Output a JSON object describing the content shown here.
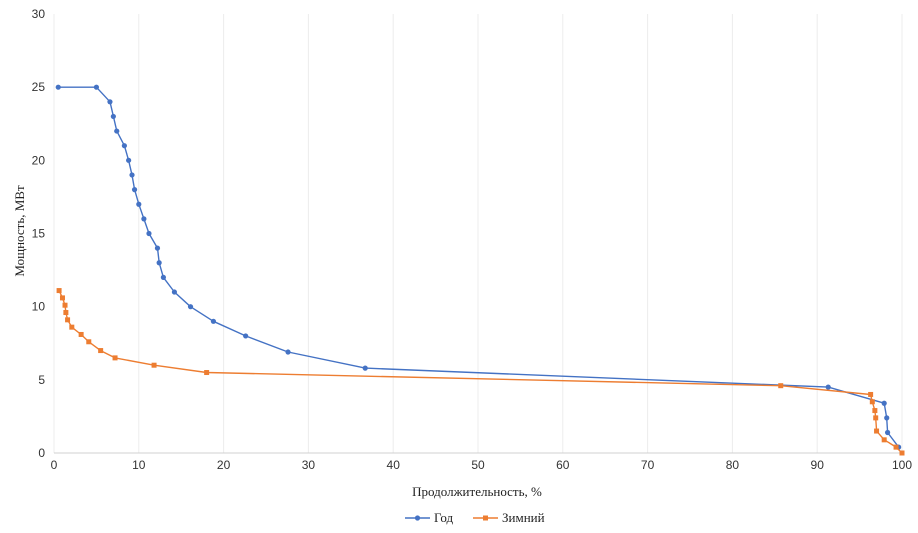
{
  "chart_data": {
    "type": "line",
    "title": "",
    "xlabel": "Продолжительность, %",
    "ylabel": "Мощность, МВт",
    "xlim": [
      0,
      100
    ],
    "ylim": [
      0,
      30
    ],
    "xticks": [
      "0",
      "10",
      "20",
      "30",
      "40",
      "50",
      "60",
      "70",
      "80",
      "90",
      "100"
    ],
    "yticks": [
      "0",
      "5",
      "10",
      "15",
      "20",
      "25",
      "30"
    ],
    "grid": "vertical",
    "legend_position": "bottom",
    "series": [
      {
        "name": "Год",
        "color": "#4472C4",
        "marker": "circle",
        "x": [
          0.5,
          5,
          6.6,
          7,
          7.4,
          8.3,
          8.8,
          9.2,
          9.5,
          10,
          10.6,
          11.2,
          12.2,
          12.4,
          12.9,
          14.2,
          16.1,
          18.8,
          22.6,
          27.6,
          36.7,
          91.3,
          97.9,
          98.2,
          98.3,
          99.6
        ],
        "y": [
          25,
          25,
          24,
          23,
          22,
          21,
          20,
          19,
          18,
          17,
          16,
          15,
          14,
          13,
          12,
          11,
          10,
          9,
          8,
          6.9,
          5.8,
          4.5,
          3.4,
          2.4,
          1.4,
          0.4
        ]
      },
      {
        "name": "Зимний",
        "color": "#ED7D31",
        "marker": "square",
        "x": [
          0.6,
          1,
          1.3,
          1.4,
          1.6,
          2.1,
          3.2,
          4.1,
          5.5,
          7.2,
          11.8,
          18,
          85.7,
          96.3,
          96.5,
          96.8,
          96.9,
          97,
          97.9,
          99.3,
          100
        ],
        "y": [
          11.1,
          10.6,
          10.1,
          9.6,
          9.1,
          8.6,
          8.1,
          7.6,
          7,
          6.5,
          6,
          5.5,
          4.6,
          4,
          3.5,
          2.9,
          2.4,
          1.5,
          0.9,
          0.4,
          0
        ]
      }
    ]
  }
}
